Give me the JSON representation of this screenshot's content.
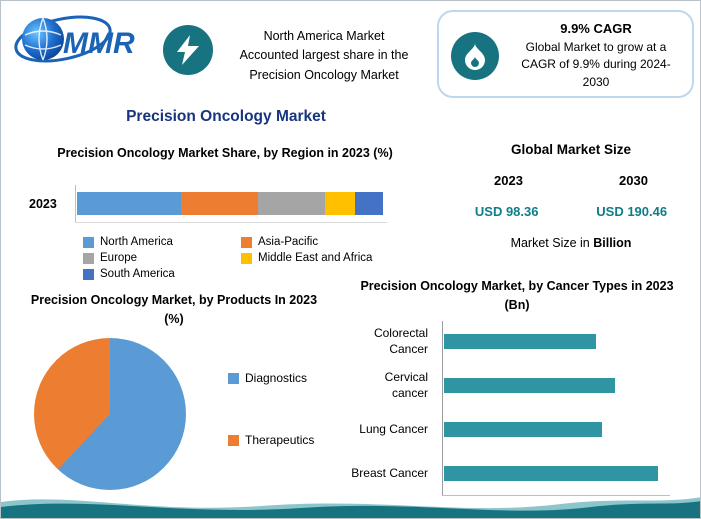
{
  "brand": {
    "logo_text": "MMR"
  },
  "header": {
    "highlight_left": "North America Market\nAccounted largest share in the\nPrecision Oncology Market",
    "cagr_title": "9.9% CAGR",
    "cagr_text": "Global Market to grow at a\nCAGR of 9.9% during 2024-\n2030"
  },
  "page_title": "Precision Oncology Market",
  "market_size": {
    "title": "Global Market Size",
    "year_left": "2023",
    "year_right": "2030",
    "value_left": "USD 98.36",
    "value_right": "USD 190.46",
    "note_prefix": "Market Size in ",
    "note_bold": "Billion"
  },
  "colors": {
    "badge_teal": "#17737f",
    "value_teal": "#0e7d87",
    "title_blue": "#17357f"
  },
  "chart_data": [
    {
      "id": "region_share",
      "type": "bar",
      "variant": "stacked-horizontal",
      "title": "Precision Oncology Market Share, by Region in 2023 (%)",
      "categories": [
        "2023"
      ],
      "series": [
        {
          "name": "North America",
          "color": "#5b9bd5",
          "values": [
            34
          ]
        },
        {
          "name": "Asia-Pacific",
          "color": "#ed7d31",
          "values": [
            25
          ]
        },
        {
          "name": "Europe",
          "color": "#a5a5a5",
          "values": [
            22
          ]
        },
        {
          "name": "Middle East and Africa",
          "color": "#ffc000",
          "values": [
            10
          ]
        },
        {
          "name": "South America",
          "color": "#4472c4",
          "values": [
            9
          ]
        }
      ],
      "xlim": [
        0,
        100
      ],
      "legend_position": "bottom",
      "note": "segment values estimated from widths; no data labels shown"
    },
    {
      "id": "products",
      "type": "pie",
      "title": "Precision Oncology Market, by Products In 2023 (%)",
      "slices": [
        {
          "name": "Diagnostics",
          "color": "#5b9bd5",
          "value": 62
        },
        {
          "name": "Therapeutics",
          "color": "#ed7d31",
          "value": 38
        }
      ],
      "legend_position": "right",
      "note": "slice values estimated from angles; no data labels shown"
    },
    {
      "id": "cancer_types",
      "type": "bar",
      "variant": "horizontal",
      "title": "Precision Oncology Market, by Cancer Types in 2023 (Bn)",
      "categories": [
        "Colorectal Cancer",
        "Cervical cancer",
        "Lung Cancer",
        "Breast Cancer"
      ],
      "values": [
        71,
        80,
        74,
        100
      ],
      "color": "#2f95a3",
      "note": "relative bar lengths (% of longest bar); axis not labeled"
    }
  ]
}
